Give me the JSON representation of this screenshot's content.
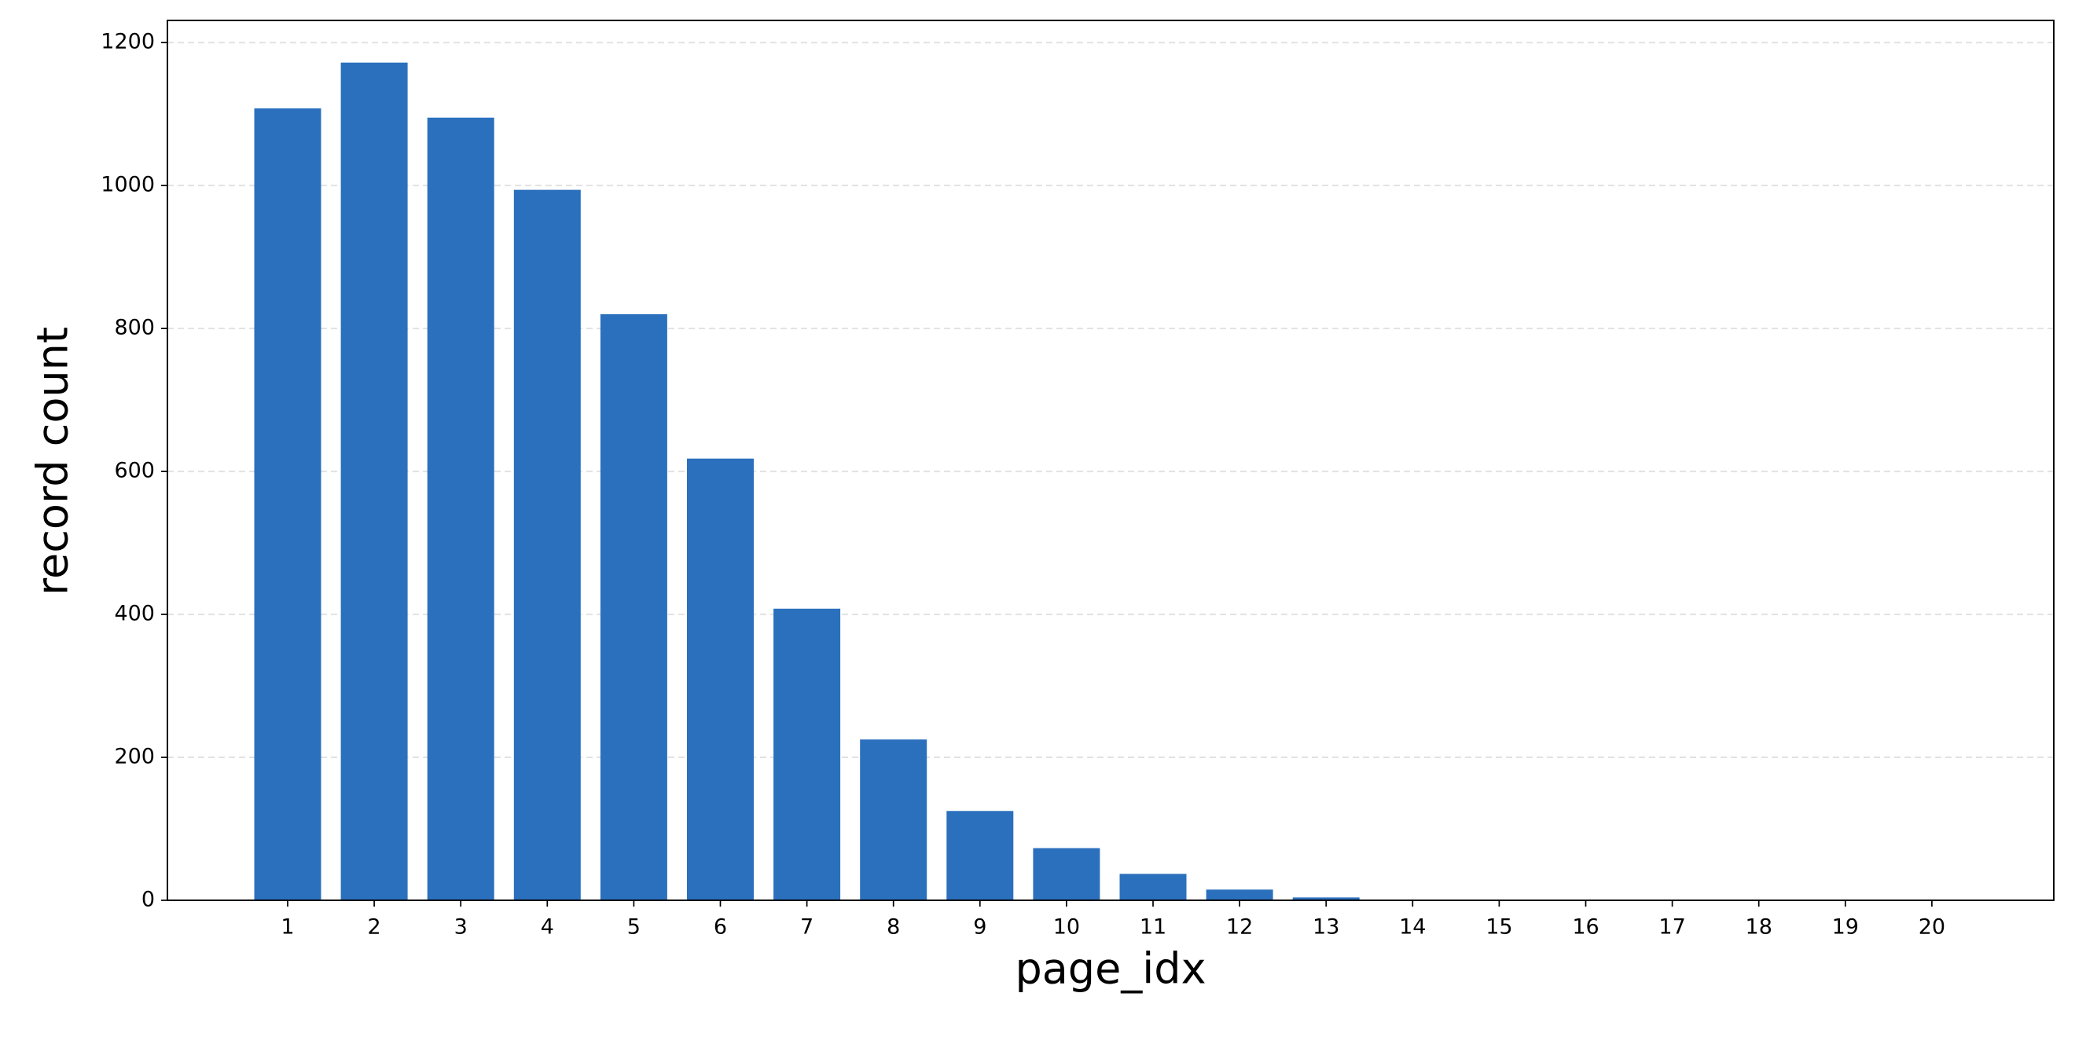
{
  "chart_data": {
    "type": "bar",
    "x_label": "page_idx",
    "y_label": "record count",
    "categories": [
      "1",
      "2",
      "3",
      "4",
      "5",
      "6",
      "7",
      "8",
      "9",
      "10",
      "11",
      "12",
      "13",
      "14",
      "15",
      "16",
      "17",
      "18",
      "19",
      "20"
    ],
    "values": [
      1108,
      1172,
      1095,
      994,
      820,
      618,
      408,
      225,
      125,
      73,
      37,
      15,
      4,
      0,
      0,
      0,
      0,
      0,
      0,
      0
    ],
    "color": "#2b70bd",
    "ylim": [
      0,
      1231
    ],
    "yticks": [
      0,
      200,
      400,
      600,
      800,
      1000,
      1200
    ],
    "grid": true
  }
}
